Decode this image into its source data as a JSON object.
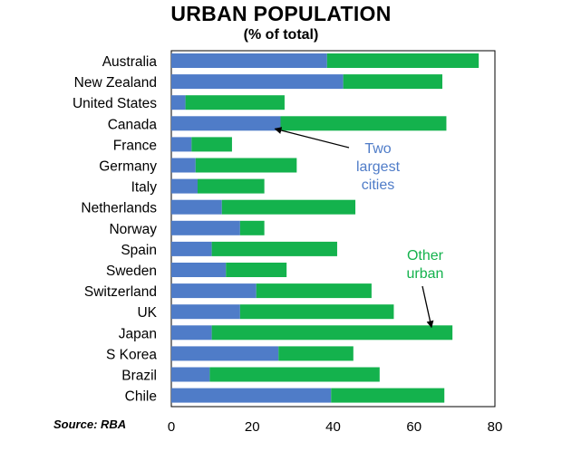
{
  "chart_data": {
    "type": "bar",
    "orientation": "horizontal",
    "stacked": true,
    "title": "URBAN POPULATION",
    "subtitle": "(% of total)",
    "categories": [
      "Australia",
      "New Zealand",
      "United States",
      "Canada",
      "France",
      "Germany",
      "Italy",
      "Netherlands",
      "Norway",
      "Spain",
      "Sweden",
      "Switzerland",
      "UK",
      "Japan",
      "S Korea",
      "Brazil",
      "Chile"
    ],
    "series": [
      {
        "name": "Two largest cities",
        "color": "#4f7cc8",
        "values": [
          38.5,
          42.5,
          3.5,
          27,
          5,
          6,
          6.5,
          12.5,
          17,
          10,
          13.5,
          21,
          17,
          10,
          26.5,
          9.5,
          39.5
        ]
      },
      {
        "name": "Other urban",
        "color": "#14b24d",
        "values": [
          37.5,
          24.5,
          24.5,
          41,
          10,
          25,
          16.5,
          33,
          6,
          31,
          15,
          28.5,
          38,
          59.5,
          18.5,
          42,
          28
        ]
      }
    ],
    "xlim": [
      0,
      80
    ],
    "xticks": [
      0,
      20,
      40,
      60,
      80
    ],
    "grid": false,
    "annotations": [
      {
        "text_lines": [
          "Two",
          "largest",
          "cities"
        ],
        "points_to": "Canada"
      },
      {
        "text_lines": [
          "Other",
          "urban"
        ],
        "points_to": "Japan"
      }
    ],
    "source": "Source: RBA"
  }
}
